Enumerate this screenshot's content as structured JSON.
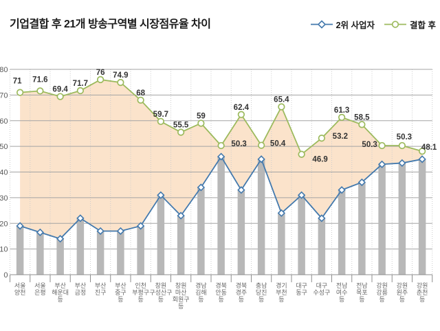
{
  "header": {
    "title": "기업결합 후 21개 방송구역별 시장점유율 차이"
  },
  "legend": {
    "items": [
      {
        "label": "2위 사업자",
        "marker": "diamond",
        "color": "#4379ad"
      },
      {
        "label": "결합 후",
        "marker": "circle",
        "color": "#9cba5d"
      }
    ]
  },
  "chart_data": {
    "type": "line",
    "title": "기업결합 후 21개 방송구역별 시장점유율 차이",
    "categories": [
      "서울 양천",
      "서울 은평",
      "부산 해운대 등",
      "부산 금정",
      "부산 진구",
      "부산 중구 등",
      "인천 부평구 등",
      "창원 구성산구 등",
      "창원 마산 회원구 등",
      "경남 김해 등",
      "경북 안동 등",
      "경북 경주 등",
      "충남 당진 등",
      "경기 부천 등",
      "대구 동구",
      "대구 수성구",
      "전남 여수 등",
      "전남 목포 등",
      "강원 강릉 등",
      "강원 원주 등",
      "강원 춘천 등"
    ],
    "category_lines": [
      [
        "서울",
        "양천"
      ],
      [
        "서울",
        "은평"
      ],
      [
        "부산",
        "해운대",
        "등"
      ],
      [
        "부산",
        "금정"
      ],
      [
        "부산",
        "진구"
      ],
      [
        "부산",
        "중구",
        "등"
      ],
      [
        "인천",
        "부평구",
        "등"
      ],
      [
        "창원",
        "구성산구",
        "등"
      ],
      [
        "창원",
        "마산",
        "회원구",
        "등"
      ],
      [
        "경남",
        "김해",
        "등"
      ],
      [
        "경북",
        "안동",
        "등"
      ],
      [
        "경북",
        "경주",
        "등"
      ],
      [
        "충남",
        "당진",
        "등"
      ],
      [
        "경기",
        "부천",
        "등"
      ],
      [
        "대구",
        "동구"
      ],
      [
        "대구",
        "수성구"
      ],
      [
        "전남",
        "여수",
        "등"
      ],
      [
        "전남",
        "목포",
        "등"
      ],
      [
        "강원",
        "강릉",
        "등"
      ],
      [
        "강원",
        "원주",
        "등"
      ],
      [
        "강원",
        "춘천",
        "등"
      ]
    ],
    "series": [
      {
        "name": "2위 사업자",
        "marker": "diamond",
        "color": "#4379ad",
        "bars": true,
        "show_labels": false,
        "values": [
          19,
          16.5,
          14,
          22,
          17,
          17,
          19,
          31,
          23,
          34,
          46,
          33,
          45,
          24,
          31,
          22,
          33,
          36,
          43,
          43.5,
          45
        ]
      },
      {
        "name": "결합 후",
        "marker": "circle",
        "color": "#9cba5d",
        "bars": false,
        "show_labels": true,
        "values": [
          71,
          71.6,
          69.4,
          71.7,
          76,
          74.9,
          68,
          59.7,
          55.5,
          59,
          50.3,
          62.4,
          50.4,
          65.4,
          46.9,
          53.2,
          61.3,
          58.5,
          50.3,
          50.3,
          48.1
        ]
      }
    ],
    "ylim": [
      0,
      80
    ],
    "yticks": [
      0,
      10,
      20,
      30,
      40,
      50,
      60,
      70,
      80
    ],
    "grid": true,
    "legend_position": "top-right",
    "fill_between_color": "#fbe3cb",
    "bar_color": "#b8b8b8",
    "hgrid_color": "#a3a3a3",
    "vgrid_color": "#cccccc",
    "axis_color": "#8c8c8c",
    "label_offsets": {
      "0": [
        -4,
        -13
      ],
      "1": [
        0,
        -13
      ],
      "10": [
        26,
        1
      ],
      "12": [
        24,
        1
      ],
      "14": [
        27,
        11
      ],
      "15": [
        27,
        1
      ],
      "18": [
        -18,
        2
      ],
      "19": [
        3,
        -9
      ],
      "20": [
        10,
        -2
      ]
    }
  }
}
